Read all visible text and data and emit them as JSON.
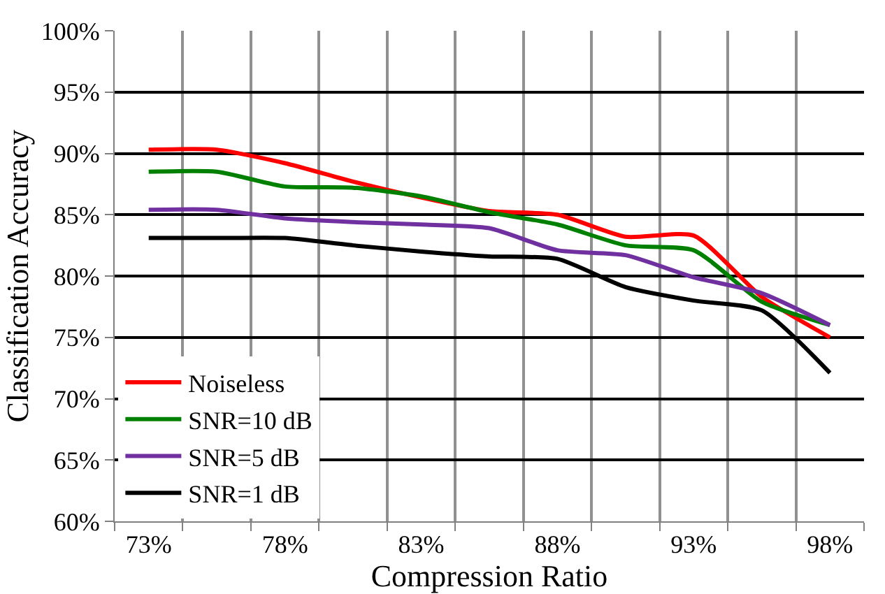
{
  "chart_data": {
    "type": "line",
    "xlabel": "Compression Ratio",
    "ylabel": "Classification Accuracy",
    "categories": [
      "73%",
      null,
      "78%",
      null,
      "83%",
      null,
      "88%",
      null,
      "93%",
      null,
      "98%"
    ],
    "ylim": [
      60,
      100
    ],
    "yticks": [
      {
        "value": 60,
        "label": "60%"
      },
      {
        "value": 65,
        "label": "65%"
      },
      {
        "value": 70,
        "label": "70%"
      },
      {
        "value": 75,
        "label": "75%"
      },
      {
        "value": 80,
        "label": "80%"
      },
      {
        "value": 85,
        "label": "85%"
      },
      {
        "value": 90,
        "label": "90%"
      },
      {
        "value": 95,
        "label": "95%"
      },
      {
        "value": 100,
        "label": "100%"
      }
    ],
    "grid": true,
    "legend": "bottom left",
    "marker": "none",
    "line_style": "solid",
    "series": [
      {
        "name": "Noiseless",
        "color": "#ff0000",
        "values": [
          90.3,
          90.3,
          89.2,
          87.7,
          86.4,
          85.3,
          85.0,
          83.2,
          83.3,
          78.3,
          75.0
        ]
      },
      {
        "name": "SNR=10 dB",
        "color": "#008000",
        "values": [
          88.5,
          88.5,
          87.3,
          87.2,
          86.5,
          85.2,
          84.2,
          82.5,
          82.1,
          77.9,
          76.0
        ]
      },
      {
        "name": "SNR=5 dB",
        "color": "#7030a0",
        "values": [
          85.4,
          85.4,
          84.7,
          84.4,
          84.2,
          83.9,
          82.1,
          81.7,
          79.9,
          78.6,
          76.0
        ]
      },
      {
        "name": "SNR=1 dB",
        "color": "#000000",
        "values": [
          83.1,
          83.1,
          83.1,
          82.5,
          82.0,
          81.6,
          81.4,
          79.1,
          78.0,
          77.2,
          72.1
        ]
      }
    ]
  }
}
